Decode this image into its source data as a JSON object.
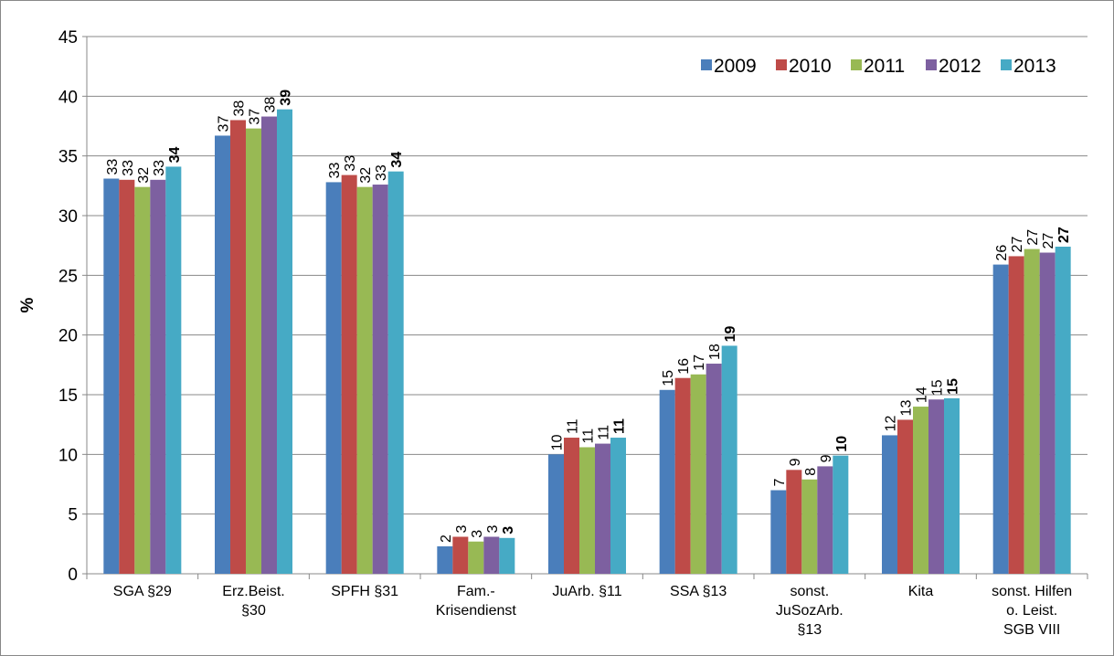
{
  "chart_data": {
    "type": "bar",
    "y_label": "%",
    "categories": [
      "SGA §29",
      "Erz.Beist.\n§30",
      "SPFH §31",
      "Fam.-\nKrisendienst",
      "JuArb. §11",
      "SSA §13",
      "sonst.\nJuSozArb.\n§13",
      "Kita",
      "sonst. Hilfen\no. Leist.\nSGB VIII"
    ],
    "series": [
      {
        "name": "2009",
        "color": "#4a7ebb",
        "values": [
          33.1,
          36.7,
          32.8,
          2.3,
          10.0,
          15.4,
          7.0,
          11.6,
          25.9
        ],
        "value_labels": [
          "33",
          "37",
          "33",
          "2",
          "10",
          "15",
          "7",
          "12",
          "26"
        ]
      },
      {
        "name": "2010",
        "color": "#be4b48",
        "values": [
          33.0,
          38.0,
          33.4,
          3.1,
          11.4,
          16.4,
          8.7,
          12.9,
          26.6
        ],
        "value_labels": [
          "33",
          "38",
          "33",
          "3",
          "11",
          "16",
          "9",
          "13",
          "27"
        ]
      },
      {
        "name": "2011",
        "color": "#98b954",
        "values": [
          32.4,
          37.3,
          32.4,
          2.7,
          10.6,
          16.7,
          7.9,
          14.0,
          27.2
        ],
        "value_labels": [
          "32",
          "37",
          "32",
          "3",
          "11",
          "17",
          "8",
          "14",
          "27"
        ]
      },
      {
        "name": "2012",
        "color": "#7d60a0",
        "values": [
          33.0,
          38.3,
          32.6,
          3.1,
          10.9,
          17.6,
          9.0,
          14.6,
          26.9
        ],
        "value_labels": [
          "33",
          "38",
          "33",
          "3",
          "11",
          "18",
          "9",
          "15",
          "27"
        ]
      },
      {
        "name": "2013",
        "color": "#46aac5",
        "values": [
          34.1,
          38.9,
          33.7,
          3.0,
          11.4,
          19.1,
          9.9,
          14.7,
          27.4
        ],
        "value_labels": [
          "34",
          "39",
          "34",
          "3",
          "11",
          "19",
          "10",
          "15",
          "27"
        ],
        "label_bold": true
      }
    ],
    "ylim": [
      0,
      45
    ],
    "yticks": [
      0,
      5,
      10,
      15,
      20,
      25,
      30,
      35,
      40,
      45
    ],
    "grid": true,
    "legend": "top-right"
  }
}
